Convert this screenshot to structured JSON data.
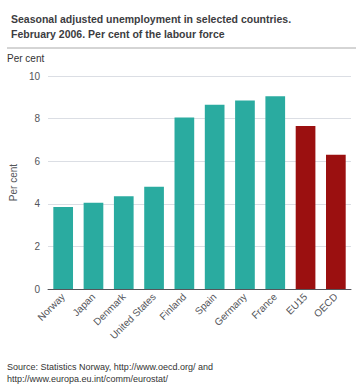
{
  "chart_data": {
    "type": "bar",
    "title": "Seasonal adjusted unemployment in selected countries.\nFebruary 2006. Per cent of the labour force",
    "ylabel": "Per cent",
    "categories": [
      "Norway",
      "Japan",
      "Denmark",
      "United States",
      "Finland",
      "Spain",
      "Germany",
      "France",
      "EU15",
      "OECD"
    ],
    "values": [
      3.85,
      4.05,
      4.35,
      4.8,
      8.05,
      8.65,
      8.85,
      9.05,
      7.65,
      6.3
    ],
    "colors": [
      "#2aaba0",
      "#2aaba0",
      "#2aaba0",
      "#2aaba0",
      "#2aaba0",
      "#2aaba0",
      "#2aaba0",
      "#2aaba0",
      "#9b1010",
      "#9b1010"
    ],
    "ylim": [
      0,
      10
    ],
    "yticks": [
      0,
      2,
      4,
      6,
      8,
      10
    ],
    "grid": true,
    "annotation": "Source: Statistics Norway, http://www.oecd.org/ and\nhttp://www.europa.eu.int/comm/eurostat/"
  }
}
